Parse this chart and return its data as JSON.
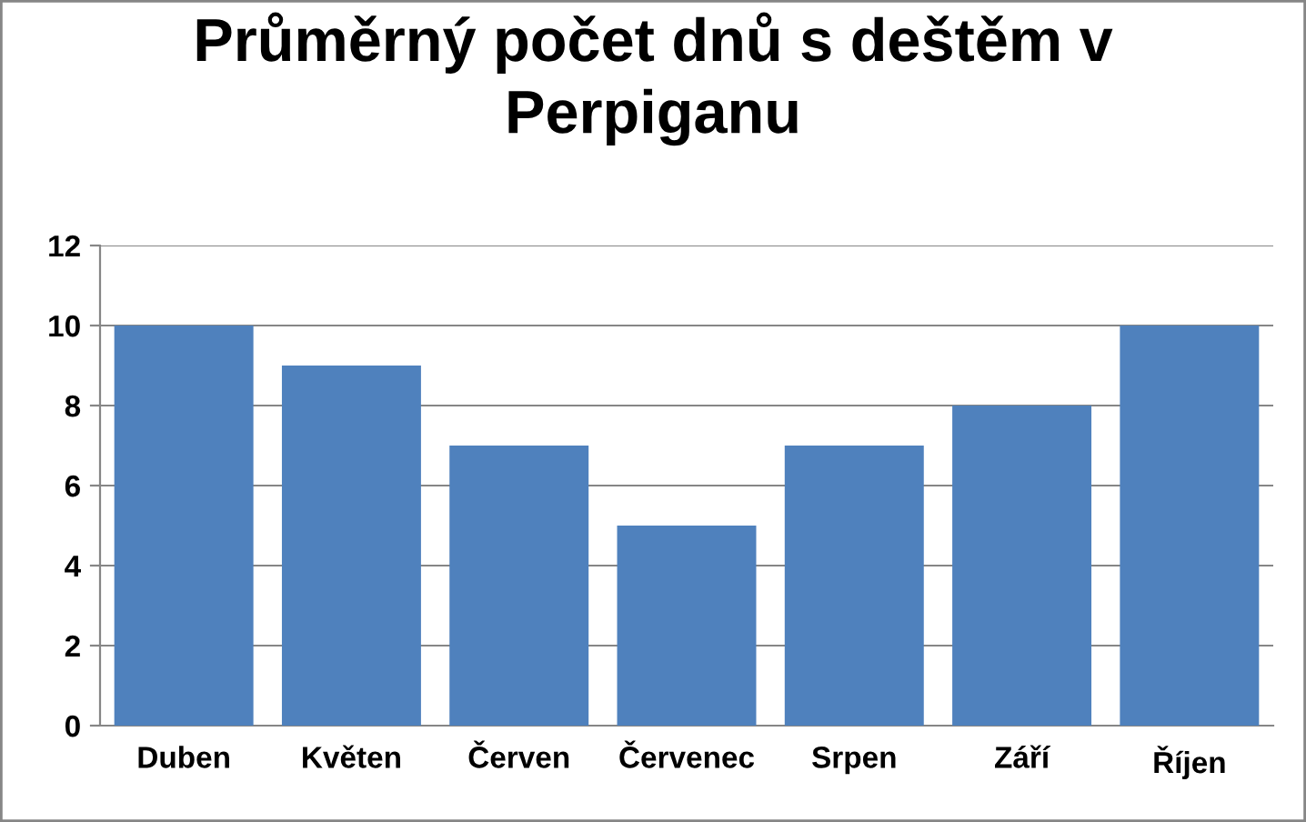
{
  "chart_data": {
    "type": "bar",
    "title": "Průměrný počet dnů s deštěm v\nPerpiganu",
    "categories": [
      "Duben",
      "Květen",
      "Červen",
      "Červenec",
      "Srpen",
      "Září",
      "Říjen"
    ],
    "values": [
      10,
      9,
      7,
      5,
      7,
      8,
      10
    ],
    "color": "#4f81bd",
    "ylim": [
      0,
      12
    ],
    "yticks": [
      0,
      2,
      4,
      6,
      8,
      10,
      12
    ],
    "grid": "y",
    "legend": false
  }
}
